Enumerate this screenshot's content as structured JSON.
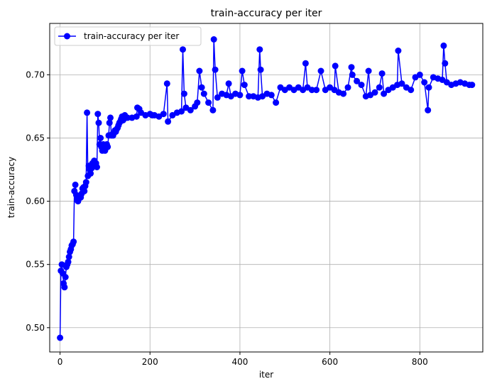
{
  "chart_data": {
    "type": "line",
    "title": "train-accuracy per iter",
    "xlabel": "iter",
    "ylabel": "train-accuracy",
    "xlim": [
      -23,
      940
    ],
    "ylim": [
      0.4808,
      0.7406
    ],
    "xticks": [
      0,
      200,
      400,
      600,
      800
    ],
    "yticks": [
      0.5,
      0.55,
      0.6,
      0.65,
      0.7
    ],
    "xtick_labels": [
      "0",
      "200",
      "400",
      "600",
      "800"
    ],
    "ytick_labels": [
      "0.50",
      "0.55",
      "0.60",
      "0.65",
      "0.70"
    ],
    "grid": true,
    "legend_position": "top-left",
    "series": [
      {
        "name": "train-accuracy per iter",
        "color": "#0000ff",
        "marker": "circle",
        "x": [
          0,
          2,
          4,
          6,
          8,
          10,
          12,
          14,
          16,
          18,
          20,
          22,
          24,
          26,
          28,
          30,
          32,
          34,
          36,
          38,
          40,
          42,
          44,
          46,
          48,
          50,
          52,
          54,
          56,
          58,
          60,
          62,
          64,
          66,
          68,
          70,
          72,
          74,
          76,
          78,
          80,
          82,
          84,
          86,
          88,
          90,
          92,
          94,
          96,
          98,
          100,
          102,
          104,
          106,
          108,
          110,
          112,
          114,
          116,
          118,
          120,
          122,
          124,
          126,
          128,
          130,
          132,
          134,
          136,
          138,
          140,
          142,
          144,
          150,
          160,
          170,
          172,
          176,
          180,
          190,
          200,
          205,
          210,
          220,
          230,
          238,
          240,
          250,
          260,
          270,
          273,
          276,
          280,
          290,
          300,
          305,
          310,
          315,
          320,
          330,
          340,
          342,
          345,
          350,
          360,
          370,
          375,
          380,
          390,
          400,
          405,
          410,
          420,
          430,
          440,
          444,
          446,
          450,
          460,
          470,
          480,
          490,
          500,
          510,
          520,
          530,
          540,
          546,
          550,
          560,
          570,
          580,
          590,
          600,
          610,
          612,
          620,
          630,
          640,
          648,
          650,
          660,
          670,
          680,
          686,
          690,
          700,
          710,
          716,
          720,
          730,
          740,
          750,
          752,
          760,
          770,
          780,
          790,
          800,
          810,
          818,
          820,
          830,
          840,
          850,
          853,
          856,
          860,
          870,
          880,
          890,
          900,
          910,
          916
        ],
        "y": [
          0.492,
          0.545,
          0.55,
          0.543,
          0.535,
          0.532,
          0.54,
          0.548,
          0.55,
          0.552,
          0.556,
          0.56,
          0.562,
          0.565,
          0.566,
          0.568,
          0.608,
          0.613,
          0.605,
          0.601,
          0.6,
          0.602,
          0.604,
          0.603,
          0.606,
          0.61,
          0.611,
          0.608,
          0.612,
          0.615,
          0.67,
          0.62,
          0.628,
          0.625,
          0.622,
          0.626,
          0.63,
          0.63,
          0.632,
          0.628,
          0.63,
          0.627,
          0.669,
          0.662,
          0.645,
          0.65,
          0.643,
          0.64,
          0.645,
          0.643,
          0.64,
          0.642,
          0.645,
          0.643,
          0.652,
          0.662,
          0.666,
          0.652,
          0.653,
          0.652,
          0.654,
          0.656,
          0.655,
          0.657,
          0.658,
          0.66,
          0.662,
          0.663,
          0.665,
          0.667,
          0.664,
          0.665,
          0.668,
          0.666,
          0.666,
          0.667,
          0.674,
          0.673,
          0.67,
          0.668,
          0.669,
          0.668,
          0.668,
          0.667,
          0.669,
          0.693,
          0.663,
          0.668,
          0.67,
          0.671,
          0.72,
          0.685,
          0.674,
          0.672,
          0.675,
          0.678,
          0.703,
          0.69,
          0.685,
          0.678,
          0.672,
          0.728,
          0.704,
          0.682,
          0.685,
          0.684,
          0.693,
          0.683,
          0.685,
          0.684,
          0.703,
          0.692,
          0.683,
          0.683,
          0.682,
          0.72,
          0.704,
          0.683,
          0.685,
          0.684,
          0.678,
          0.69,
          0.688,
          0.69,
          0.688,
          0.69,
          0.688,
          0.709,
          0.69,
          0.688,
          0.688,
          0.703,
          0.688,
          0.69,
          0.688,
          0.707,
          0.686,
          0.685,
          0.69,
          0.706,
          0.7,
          0.695,
          0.692,
          0.683,
          0.703,
          0.684,
          0.686,
          0.69,
          0.701,
          0.685,
          0.688,
          0.69,
          0.692,
          0.719,
          0.693,
          0.69,
          0.688,
          0.698,
          0.7,
          0.694,
          0.672,
          0.69,
          0.698,
          0.697,
          0.696,
          0.723,
          0.709,
          0.694,
          0.692,
          0.693,
          0.694,
          0.693,
          0.692,
          0.692
        ]
      }
    ]
  }
}
